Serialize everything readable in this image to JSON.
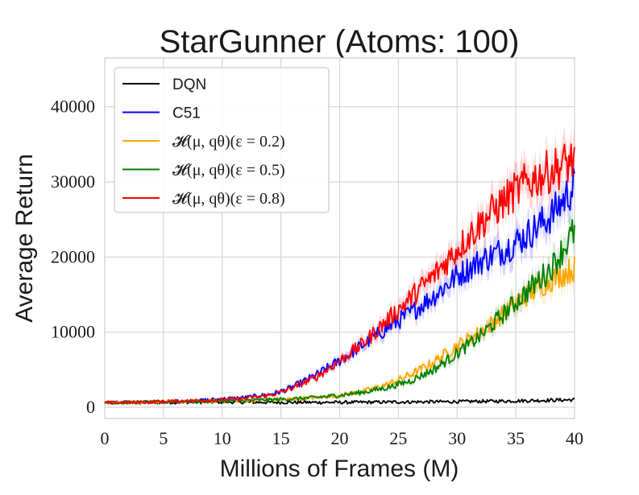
{
  "chart_data": {
    "type": "line",
    "title": "StarGunner (Atoms: 100)",
    "xlabel": "Millions of Frames (M)",
    "ylabel": "Average Return",
    "xlim": [
      0,
      40
    ],
    "ylim": [
      -1500,
      46500
    ],
    "xticks": [
      0,
      5,
      10,
      15,
      20,
      25,
      30,
      35,
      40
    ],
    "yticks": [
      0,
      10000,
      20000,
      30000,
      40000
    ],
    "grid": true,
    "legend_position": "top-left",
    "series": [
      {
        "name": "DQN",
        "color": "#000000",
        "x": [
          0,
          5,
          10,
          15,
          20,
          25,
          30,
          35,
          40
        ],
        "values": [
          600,
          650,
          700,
          650,
          650,
          700,
          750,
          850,
          1000
        ]
      },
      {
        "name": "C51",
        "color": "#0000ff",
        "x": [
          0,
          4,
          8,
          10,
          12,
          14,
          15,
          16,
          18,
          20,
          22,
          24,
          26,
          28,
          30,
          32,
          34,
          36,
          38,
          40
        ],
        "values": [
          600,
          700,
          900,
          1100,
          1300,
          1700,
          2100,
          2700,
          4300,
          6200,
          8300,
          10500,
          12500,
          14800,
          17500,
          19500,
          21000,
          23000,
          25500,
          29500
        ]
      },
      {
        "name": "𝓗(μ, qθ)(ε = 0.2)",
        "color": "#ffa500",
        "x": [
          0,
          4,
          8,
          12,
          16,
          18,
          20,
          22,
          24,
          26,
          28,
          30,
          32,
          34,
          36,
          38,
          40
        ],
        "values": [
          600,
          700,
          800,
          900,
          1100,
          1300,
          1600,
          2100,
          3000,
          4300,
          6000,
          8200,
          10000,
          12500,
          15000,
          17000,
          18500
        ]
      },
      {
        "name": "𝓗(μ, qθ)(ε = 0.5)",
        "color": "#008000",
        "x": [
          0,
          4,
          8,
          12,
          16,
          18,
          20,
          22,
          24,
          26,
          28,
          30,
          32,
          34,
          36,
          38,
          40
        ],
        "values": [
          600,
          700,
          800,
          900,
          1100,
          1300,
          1600,
          2000,
          2600,
          3500,
          5000,
          7200,
          9500,
          12500,
          15500,
          18500,
          23500
        ]
      },
      {
        "name": "𝓗(μ, qθ)(ε = 0.8)",
        "color": "#ff0000",
        "x": [
          0,
          4,
          8,
          10,
          12,
          14,
          15,
          16,
          18,
          20,
          22,
          24,
          26,
          28,
          30,
          32,
          34,
          36,
          38,
          40
        ],
        "values": [
          600,
          700,
          900,
          1000,
          1200,
          1600,
          2000,
          2600,
          4000,
          6200,
          8500,
          11500,
          14500,
          17500,
          21000,
          24500,
          27500,
          30000,
          31500,
          33000
        ]
      }
    ]
  }
}
